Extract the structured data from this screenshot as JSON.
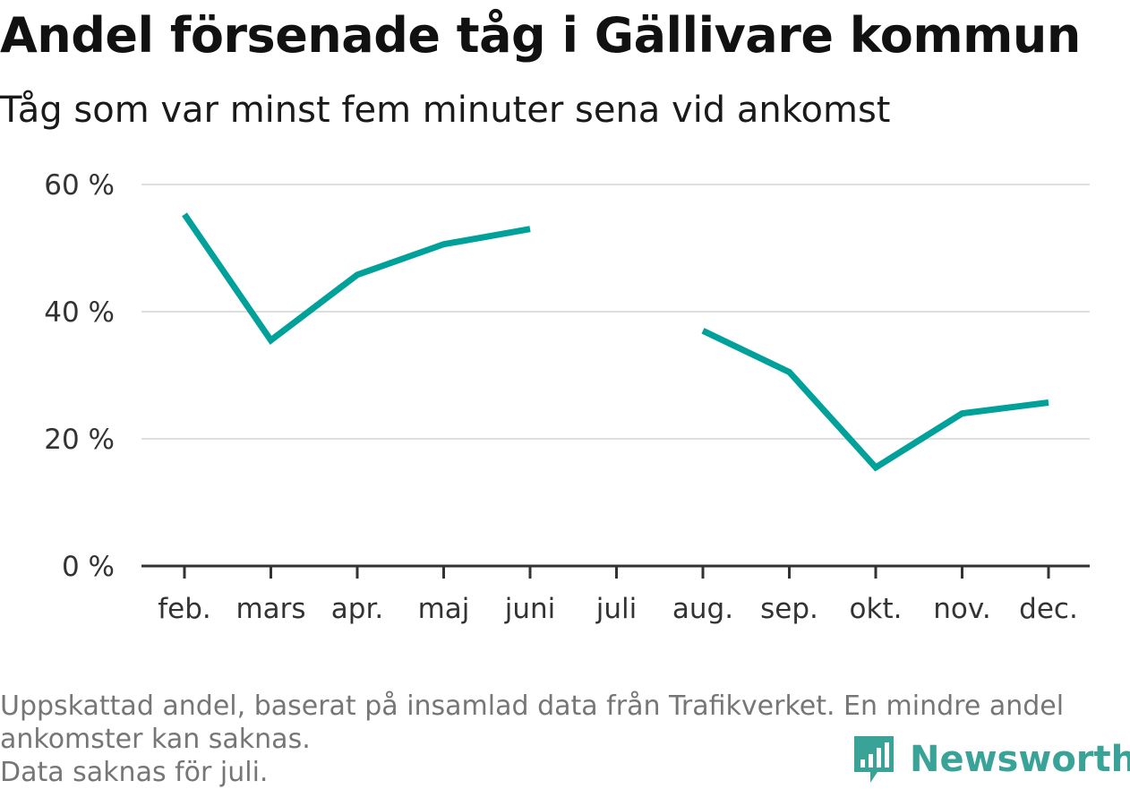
{
  "title": "Andel försenade tåg i Gällivare kommun",
  "subtitle": "Tåg som var minst fem minuter sena vid ankomst",
  "chart_data": {
    "type": "line",
    "categories": [
      "feb.",
      "mars",
      "apr.",
      "maj",
      "juni",
      "juli",
      "aug.",
      "sep.",
      "okt.",
      "nov.",
      "dec."
    ],
    "series": [
      {
        "values": [
          55.3,
          35.5,
          45.8,
          50.6,
          53.0,
          null,
          37.0,
          30.5,
          15.5,
          24.0,
          25.7
        ]
      }
    ],
    "yticks": [
      0,
      20,
      40,
      60
    ],
    "ytick_labels": [
      "0 %",
      "20 %",
      "40 %",
      "60 %"
    ],
    "ylim": [
      0,
      60
    ],
    "grid": true,
    "line_color": "#00a19a"
  },
  "footer": {
    "line1": "Uppskattad andel, baserat på insamlad data från Trafikverket. En mindre andel",
    "line2": "ankomster kan saknas.",
    "line3": "Data saknas för juli."
  },
  "brand": {
    "name": "Newsworthy",
    "logo_icon": "bar-chart-speech-bubble-icon",
    "color": "#3aa397"
  }
}
